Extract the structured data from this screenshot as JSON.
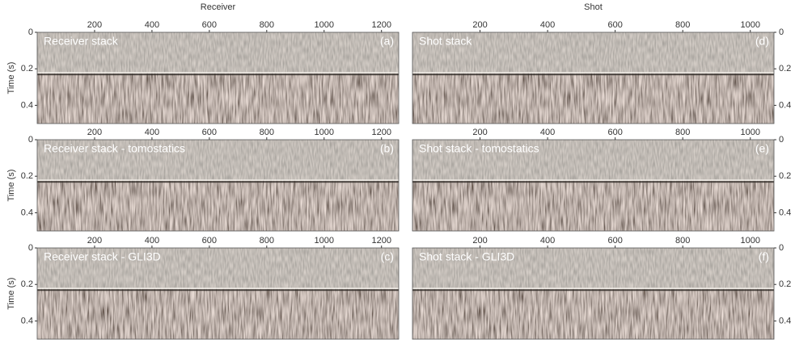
{
  "figure": {
    "y_axis_title": "Time (s)",
    "ylim": [
      0,
      0.5
    ],
    "yticks": [
      0,
      0.2,
      0.4
    ],
    "columns": [
      {
        "axis_title": "Receiver",
        "xlim": [
          0,
          1260
        ],
        "xticks": [
          200,
          400,
          600,
          800,
          1000,
          1200
        ],
        "panels": [
          {
            "label": "Receiver stack",
            "letter": "(a)"
          },
          {
            "label": "Receiver stack - tomostatics",
            "letter": "(b)"
          },
          {
            "label": "Receiver stack - GLI3D",
            "letter": "(c)"
          }
        ]
      },
      {
        "axis_title": "Shot",
        "xlim": [
          0,
          1070
        ],
        "xticks": [
          200,
          400,
          600,
          800,
          1000
        ],
        "panels": [
          {
            "label": "Shot stack",
            "letter": "(d)"
          },
          {
            "label": "Shot stack - tomostatics",
            "letter": "(e)"
          },
          {
            "label": "Shot stack - GLI3D",
            "letter": "(f)"
          }
        ]
      }
    ]
  }
}
